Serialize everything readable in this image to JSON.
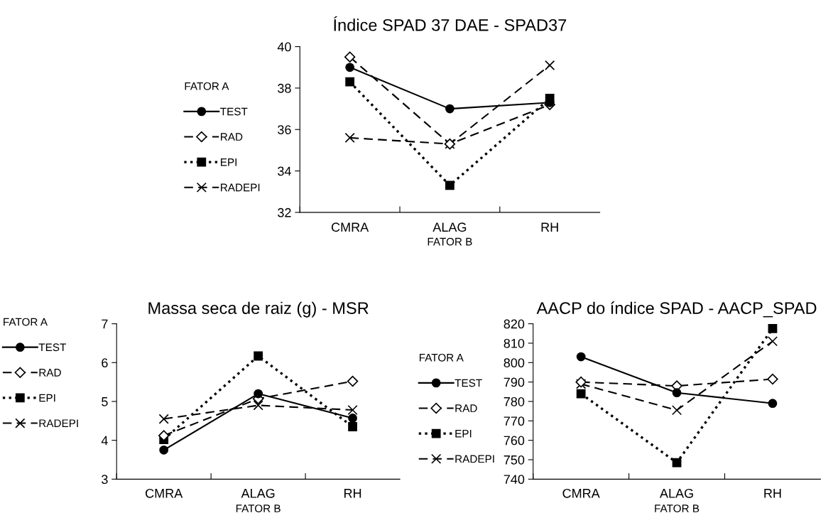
{
  "chart_data": [
    {
      "type": "line",
      "title": "Índice SPAD 37 DAE - SPAD37",
      "xlabel": "FATOR B",
      "legend_title": "FATOR A",
      "legend": "left",
      "grid": false,
      "categories": [
        "CMRA",
        "ALAG",
        "RH"
      ],
      "ylim": [
        32,
        40
      ],
      "yticks": [
        32,
        34,
        36,
        38,
        40
      ],
      "series": [
        {
          "name": "TEST",
          "color": "#000000",
          "marker": "circle",
          "line_style": "solid",
          "values": [
            39.0,
            37.0,
            37.3
          ]
        },
        {
          "name": "RAD",
          "color": "#000000",
          "marker": "diamond",
          "line_style": "dashed",
          "values": [
            39.5,
            35.3,
            37.2
          ]
        },
        {
          "name": "EPI",
          "color": "#000000",
          "marker": "square",
          "line_style": "dotted",
          "values": [
            38.3,
            33.3,
            37.5
          ]
        },
        {
          "name": "RADEPI",
          "color": "#000000",
          "marker": "cross",
          "line_style": "dashed",
          "values": [
            35.6,
            35.3,
            39.1
          ]
        }
      ]
    },
    {
      "type": "line",
      "title": "Massa seca de raiz (g) - MSR",
      "xlabel": "FATOR B",
      "legend_title": "FATOR A",
      "legend": "top left",
      "grid": false,
      "categories": [
        "CMRA",
        "ALAG",
        "RH"
      ],
      "ylim": [
        3,
        7
      ],
      "yticks": [
        3,
        4,
        5,
        6,
        7
      ],
      "series": [
        {
          "name": "TEST",
          "color": "#000000",
          "marker": "circle",
          "line_style": "solid",
          "values": [
            3.75,
            5.2,
            4.57
          ]
        },
        {
          "name": "RAD",
          "color": "#000000",
          "marker": "diamond",
          "line_style": "dashed",
          "values": [
            4.12,
            5.07,
            5.52
          ]
        },
        {
          "name": "EPI",
          "color": "#000000",
          "marker": "square",
          "line_style": "dotted",
          "values": [
            4.02,
            6.17,
            4.35
          ]
        },
        {
          "name": "RADEPI",
          "color": "#000000",
          "marker": "cross",
          "line_style": "dashed",
          "values": [
            4.55,
            4.9,
            4.78
          ]
        }
      ]
    },
    {
      "type": "line",
      "title": "AACP do índice SPAD - AACP_SPAD",
      "xlabel": "FATOR B",
      "legend_title": "FATOR A",
      "legend": "left",
      "grid": false,
      "categories": [
        "CMRA",
        "ALAG",
        "RH"
      ],
      "ylim": [
        740,
        820
      ],
      "yticks": [
        740,
        750,
        760,
        770,
        780,
        790,
        800,
        810,
        820
      ],
      "series": [
        {
          "name": "TEST",
          "color": "#000000",
          "marker": "circle",
          "line_style": "solid",
          "values": [
            803,
            784.5,
            779
          ]
        },
        {
          "name": "RAD",
          "color": "#000000",
          "marker": "diamond",
          "line_style": "dashed",
          "values": [
            790,
            788,
            791.5
          ]
        },
        {
          "name": "EPI",
          "color": "#000000",
          "marker": "square",
          "line_style": "dotted",
          "values": [
            784,
            748.5,
            817.5
          ]
        },
        {
          "name": "RADEPI",
          "color": "#000000",
          "marker": "cross",
          "line_style": "dashed",
          "values": [
            789,
            775.5,
            811
          ]
        }
      ]
    }
  ]
}
